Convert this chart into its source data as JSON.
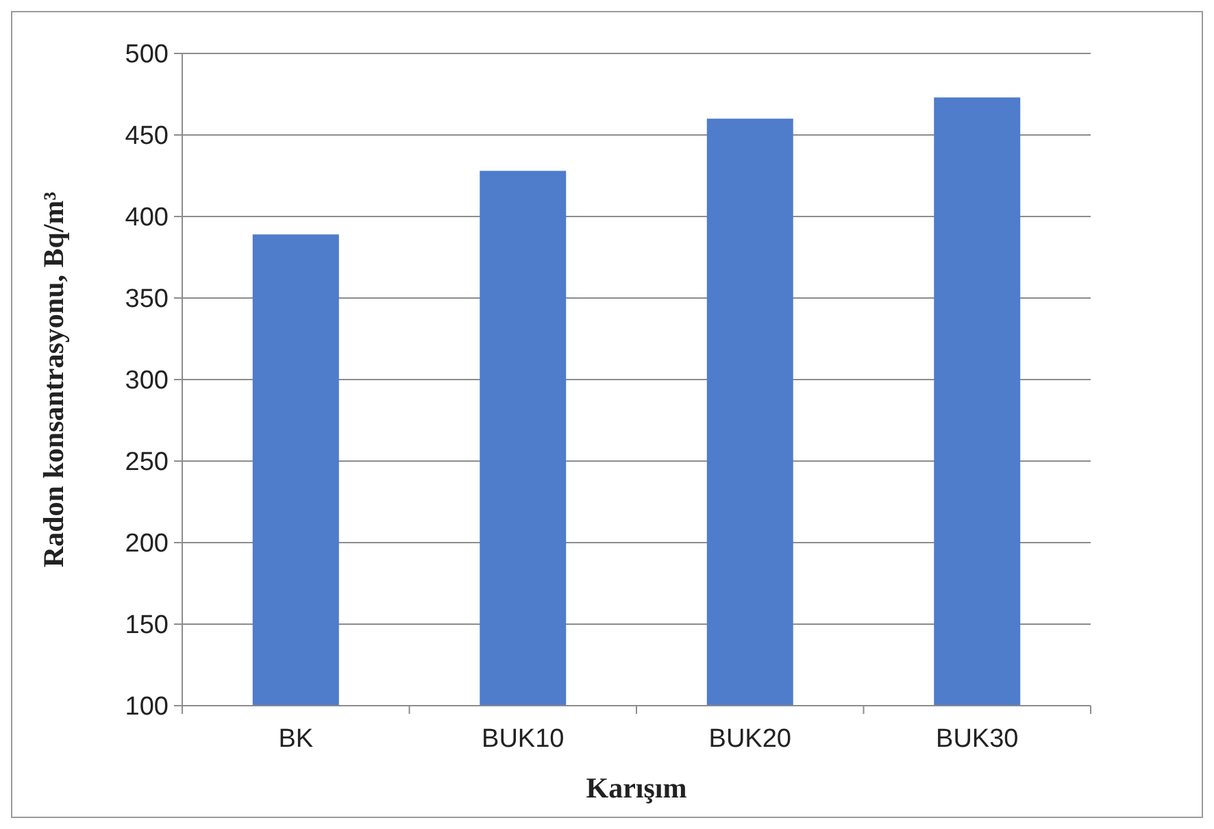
{
  "chart_data": {
    "type": "bar",
    "xlabel": "Karışım",
    "ylabel": "Radon konsantrasyonu, Bq/m³",
    "categories": [
      "BK",
      "BUK10",
      "BUK20",
      "BUK30"
    ],
    "values": [
      389,
      428,
      460,
      473
    ],
    "color": "#4f7ccb",
    "ylim": [
      100,
      500
    ],
    "yticks": [
      100,
      150,
      200,
      250,
      300,
      350,
      400,
      450,
      500
    ],
    "grid": "y"
  }
}
